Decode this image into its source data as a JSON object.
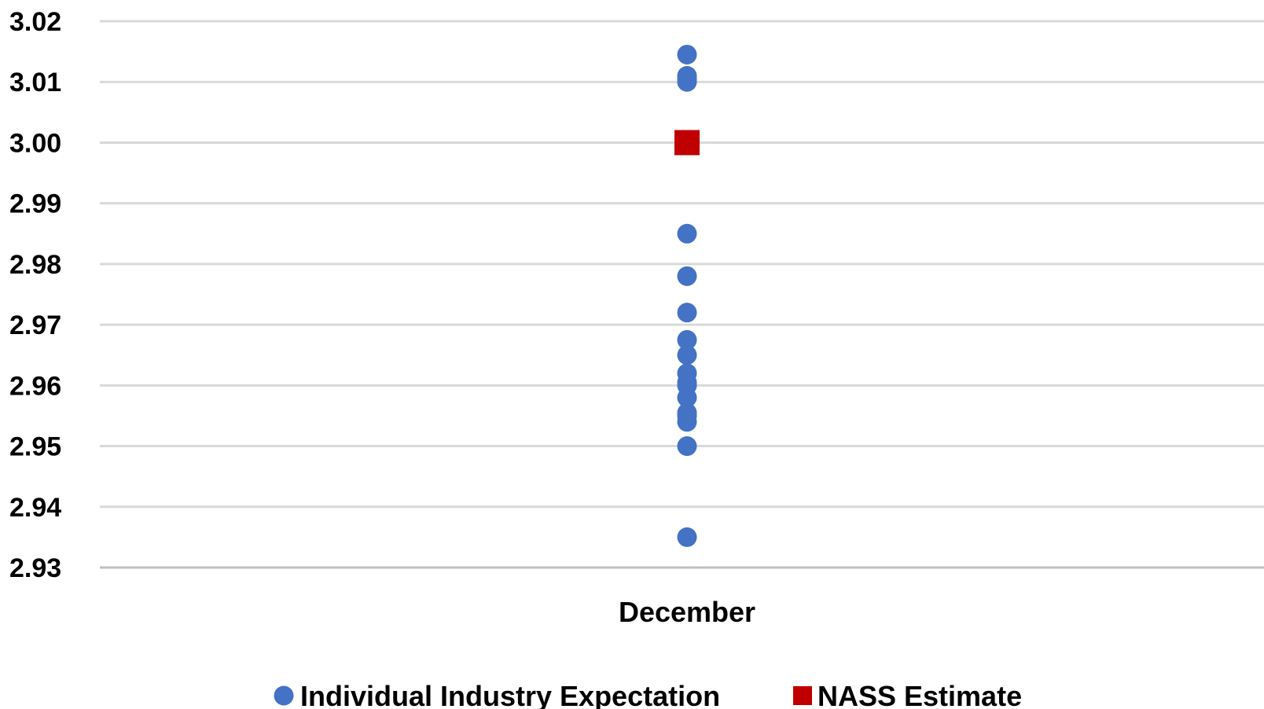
{
  "chart_data": {
    "type": "scatter",
    "categories": [
      "December"
    ],
    "ylim": [
      2.93,
      3.02
    ],
    "yticks": [
      "2.93",
      "2.94",
      "2.95",
      "2.96",
      "2.97",
      "2.98",
      "2.99",
      "3.00",
      "3.01",
      "3.02"
    ],
    "grid": true,
    "legend_position": "bottom",
    "series": [
      {
        "name": "Individual Industry Expectation",
        "marker": "circle",
        "color": "#4472c4",
        "values": [
          3.0145,
          3.011,
          3.0105,
          3.01,
          2.985,
          2.978,
          2.972,
          2.9675,
          2.965,
          2.962,
          2.9605,
          2.96,
          2.958,
          2.9555,
          2.955,
          2.954,
          2.95,
          2.935
        ]
      },
      {
        "name": "NASS Estimate",
        "marker": "square",
        "color": "#c00000",
        "values": [
          3.0
        ]
      }
    ]
  }
}
